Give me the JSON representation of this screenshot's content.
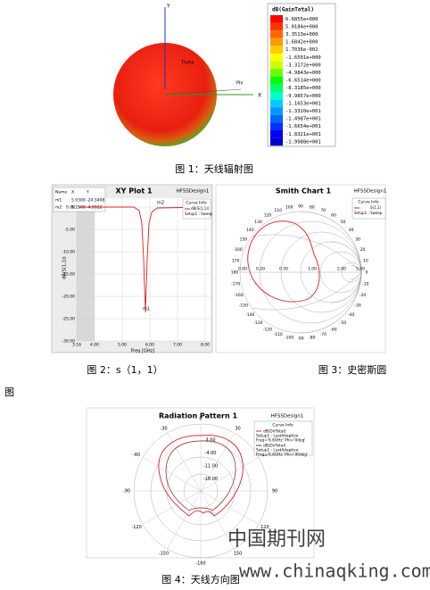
{
  "figure1": {
    "axis_labels": {
      "y": "Y",
      "x": "X",
      "phi": "Phi",
      "theta": "Theta"
    },
    "legend": {
      "title": "dB(GainTotal)",
      "values": [
        "6.6855e+000",
        "5.0184e+000",
        "3.3513e+000",
        "1.6842e+000",
        "1.7036e-002",
        "-1.6501e+000",
        "-3.3172e+000",
        "-4.9843e+000",
        "-6.6514e+000",
        "-8.3185e+000",
        "-9.9857e+000",
        "-1.1653e+001",
        "-1.3320e+001",
        "-1.4987e+001",
        "-1.6654e+001",
        "-1.8321e+001",
        "-1.9988e+001"
      ]
    },
    "caption": "图 1：天线辐射图"
  },
  "figure2": {
    "title": "XY Plot 1",
    "design": "HFSSDesign1",
    "marker_table": {
      "header": [
        "Name",
        "X",
        "Y"
      ],
      "rows": [
        [
          "m1",
          "5.9300",
          "-24.3408"
        ],
        [
          "m2",
          "6.2500",
          "-4.9922"
        ]
      ]
    },
    "curve_info": {
      "title": "Curve Info",
      "entries": [
        "dB(S(1,1))",
        "Setup1 : Sweep"
      ]
    },
    "yticks": [
      "0.00",
      "-5.00",
      "-10.00",
      "-15.00",
      "-20.00",
      "-25.00",
      "-30.00"
    ],
    "xticks": [
      "3.16",
      "4.00",
      "5.00",
      "6.00",
      "7.00",
      "8.00"
    ],
    "x_label": "Freq [GHz]",
    "y_label": "dB(S(1,1))",
    "markers": [
      "m2",
      "m1"
    ],
    "caption": "图 2：s（1，1）"
  },
  "figure3": {
    "title": "Smith Chart 1",
    "design": "HFSSDesign1",
    "curve_info": {
      "title": "Curve Info",
      "entries": [
        "S(1,1)",
        "Setup1 : Sweep"
      ]
    },
    "angle_labels": [
      "0",
      "10",
      "20",
      "30",
      "40",
      "50",
      "60",
      "70",
      "80",
      "90",
      "100",
      "110",
      "120",
      "130",
      "140",
      "150",
      "160",
      "170",
      "180",
      "-170",
      "-160",
      "-150",
      "-140",
      "-130",
      "-120",
      "-110",
      "-100",
      "-90",
      "-80",
      "-70",
      "-60",
      "-50",
      "-40",
      "-30",
      "-20",
      "-10"
    ],
    "resistance_labels": [
      "0.00",
      "0.20",
      "0.50",
      "1.00",
      "2.00",
      "5.00"
    ],
    "caption": "图 3：史密斯圆",
    "caption_wrap": "图"
  },
  "figure4": {
    "title": "Radiation Pattern 1",
    "design": "HFSSDesign1",
    "curve_info": {
      "title": "Curve Info",
      "series": [
        {
          "name": "dB(DirTotal)",
          "setup": "Setup1 : LastAdaptive",
          "params": "Freq='6.6GHz' Phi='0deg'"
        },
        {
          "name": "dB(DirTotal)",
          "setup": "Setup1 : LastAdaptive",
          "params": "Freq='6.6GHz' Phi='90deg'"
        }
      ]
    },
    "angle_labels": [
      "0",
      "30",
      "60",
      "90",
      "120",
      "150",
      "-180",
      "-150",
      "-120",
      "-90",
      "-60",
      "-30"
    ],
    "radial_labels": [
      "3.00",
      "-4.00",
      "-11.00",
      "-18.00"
    ],
    "caption": "图 4：天线方向图"
  },
  "watermark": {
    "name": "中国期刊网",
    "url": "www.chinaqking.com"
  }
}
